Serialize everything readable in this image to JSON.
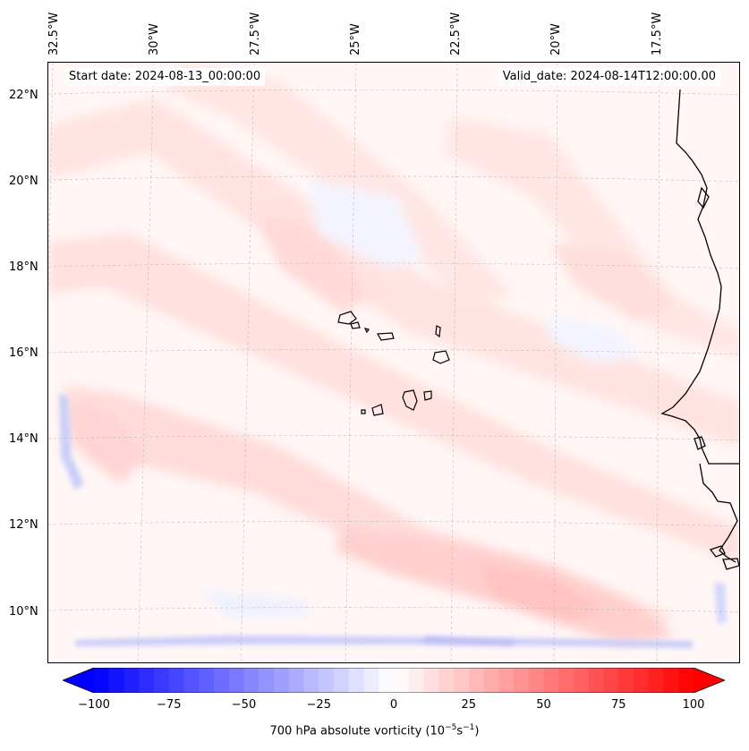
{
  "map": {
    "start_date_text": "Start date: 2024-08-13_00:00:00",
    "valid_date_text": "Valid_date: 2024-08-14T12:00:00.00",
    "longitude_labels": [
      "32.5°W",
      "30°W",
      "27.5°W",
      "25°W",
      "22.5°W",
      "20°W",
      "17.5°W"
    ],
    "latitude_labels": [
      "22°N",
      "20°N",
      "18°N",
      "16°N",
      "14°N",
      "12°N",
      "10°N"
    ],
    "land_stroke_color": "#000000",
    "gridline_color": "#bbbbbb"
  },
  "colorbar": {
    "title_main": "700 hPa absolute vorticity (10",
    "title_exp1": "−5",
    "title_mid": "s",
    "title_exp2": "−1",
    "title_end": ")",
    "min": -100,
    "max": 100,
    "tick_labels": [
      "−100",
      "−75",
      "−50",
      "−25",
      "0",
      "25",
      "50",
      "75",
      "100"
    ],
    "low_color": "#0000ff",
    "mid_color": "#ffffff",
    "high_color": "#ff0000",
    "extend": "both"
  }
}
